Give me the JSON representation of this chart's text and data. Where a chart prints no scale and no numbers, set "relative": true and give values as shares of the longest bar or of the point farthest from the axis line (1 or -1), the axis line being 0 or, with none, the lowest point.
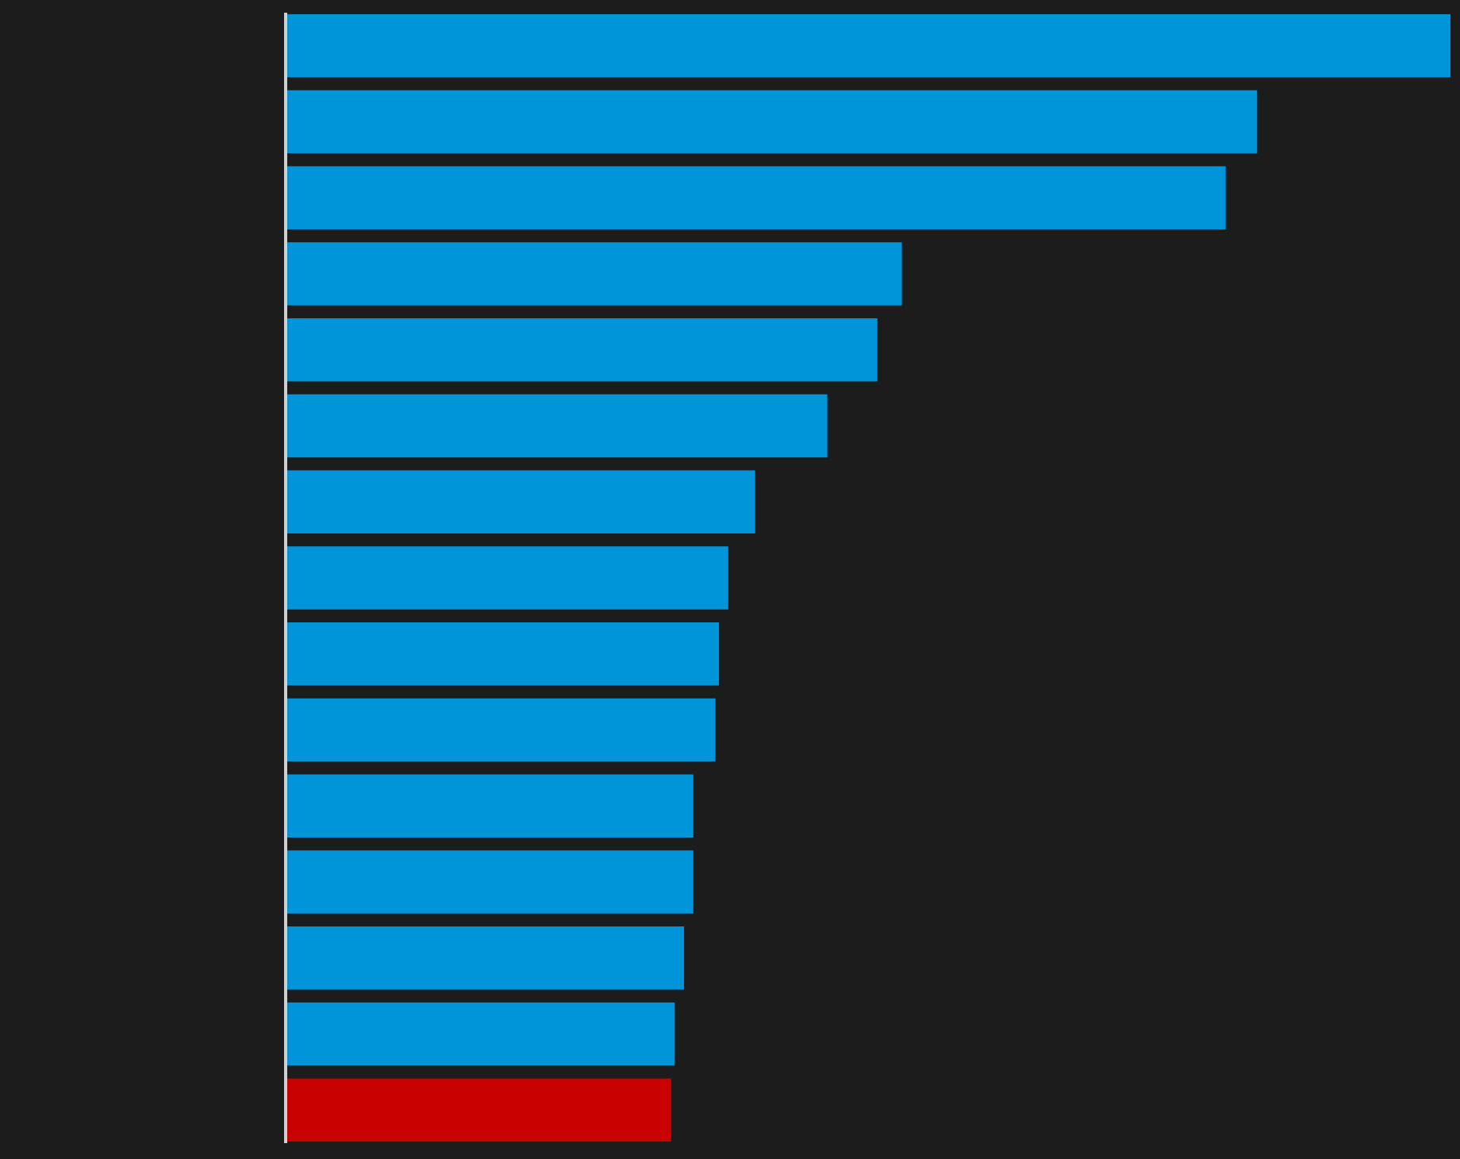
{
  "chart_data": {
    "type": "bar",
    "orientation": "horizontal",
    "relative": true,
    "categories": [
      null,
      null,
      null,
      null,
      null,
      null,
      null,
      null,
      null,
      null,
      null,
      null,
      null,
      null,
      null
    ],
    "values": [
      1,
      0.834,
      0.807,
      0.529,
      0.508,
      0.465,
      0.403,
      0.38,
      0.372,
      0.369,
      0.35,
      0.35,
      0.342,
      0.334,
      0.331
    ],
    "colors": [
      "#0095d9",
      "#0095d9",
      "#0095d9",
      "#0095d9",
      "#0095d9",
      "#0095d9",
      "#0095d9",
      "#0095d9",
      "#0095d9",
      "#0095d9",
      "#0095d9",
      "#0095d9",
      "#0095d9",
      "#0095d9",
      "#c80000"
    ]
  }
}
